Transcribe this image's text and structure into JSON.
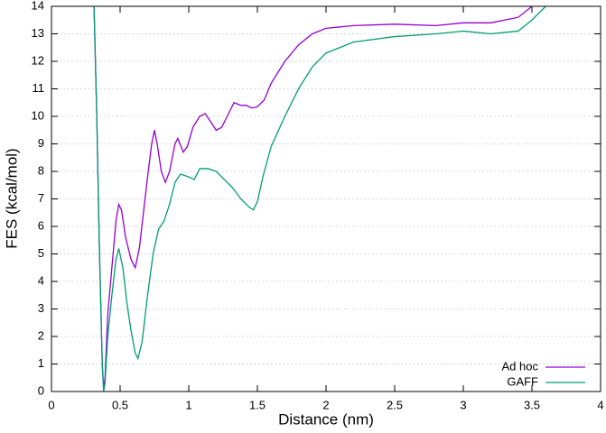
{
  "chart_data": {
    "type": "line",
    "xlabel": "Distance (nm)",
    "ylabel": "FES (kcal/mol)",
    "xlim": [
      0,
      4
    ],
    "xticks": [
      0,
      0.5,
      1,
      1.5,
      2,
      2.5,
      3,
      3.5,
      4
    ],
    "ylim": [
      0,
      14
    ],
    "yticks": [
      0,
      1,
      2,
      3,
      4,
      5,
      6,
      7,
      8,
      9,
      10,
      11,
      12,
      13,
      14
    ],
    "grid": true,
    "legend": "bottom-right",
    "series": [
      {
        "name": "Ad hoc",
        "color": "#9400d3",
        "x": [
          0.31,
          0.33,
          0.35,
          0.37,
          0.38,
          0.39,
          0.41,
          0.44,
          0.47,
          0.49,
          0.51,
          0.54,
          0.58,
          0.61,
          0.64,
          0.67,
          0.7,
          0.73,
          0.75,
          0.77,
          0.8,
          0.83,
          0.86,
          0.9,
          0.92,
          0.96,
          0.99,
          1.03,
          1.08,
          1.12,
          1.16,
          1.2,
          1.24,
          1.28,
          1.33,
          1.38,
          1.42,
          1.46,
          1.5,
          1.55,
          1.6,
          1.7,
          1.8,
          1.9,
          2.0,
          2.2,
          2.5,
          2.8,
          3.0,
          3.2,
          3.4,
          3.5
        ],
        "values": [
          14,
          10,
          5,
          1,
          0.1,
          0.5,
          2.8,
          4.5,
          6.2,
          6.8,
          6.6,
          5.6,
          4.8,
          4.5,
          5.2,
          6.5,
          7.8,
          9.0,
          9.5,
          9.0,
          8.0,
          7.6,
          8.0,
          9.0,
          9.2,
          8.7,
          8.9,
          9.6,
          10.0,
          10.1,
          9.8,
          9.5,
          9.6,
          10.0,
          10.5,
          10.4,
          10.4,
          10.3,
          10.35,
          10.6,
          11.2,
          12.0,
          12.6,
          13.0,
          13.2,
          13.3,
          13.35,
          13.3,
          13.4,
          13.4,
          13.6,
          14.0
        ]
      },
      {
        "name": "GAFF",
        "color": "#009e73",
        "x": [
          0.31,
          0.33,
          0.35,
          0.37,
          0.38,
          0.39,
          0.41,
          0.44,
          0.47,
          0.49,
          0.52,
          0.55,
          0.58,
          0.61,
          0.63,
          0.66,
          0.7,
          0.74,
          0.78,
          0.82,
          0.86,
          0.9,
          0.94,
          1.0,
          1.04,
          1.08,
          1.14,
          1.2,
          1.26,
          1.32,
          1.38,
          1.44,
          1.47,
          1.5,
          1.54,
          1.6,
          1.7,
          1.8,
          1.9,
          2.0,
          2.2,
          2.5,
          2.8,
          3.0,
          3.2,
          3.4,
          3.5,
          3.6
        ],
        "values": [
          14,
          10,
          5,
          1,
          0,
          0.3,
          2.0,
          3.5,
          4.8,
          5.2,
          4.5,
          3.2,
          2.2,
          1.4,
          1.2,
          1.8,
          3.5,
          5.0,
          5.9,
          6.2,
          6.8,
          7.6,
          7.9,
          7.8,
          7.7,
          8.1,
          8.1,
          8.0,
          7.7,
          7.4,
          7.0,
          6.7,
          6.6,
          6.9,
          7.8,
          8.9,
          10.0,
          11.0,
          11.8,
          12.3,
          12.7,
          12.9,
          13.0,
          13.1,
          13.0,
          13.1,
          13.5,
          14.0
        ]
      }
    ]
  }
}
